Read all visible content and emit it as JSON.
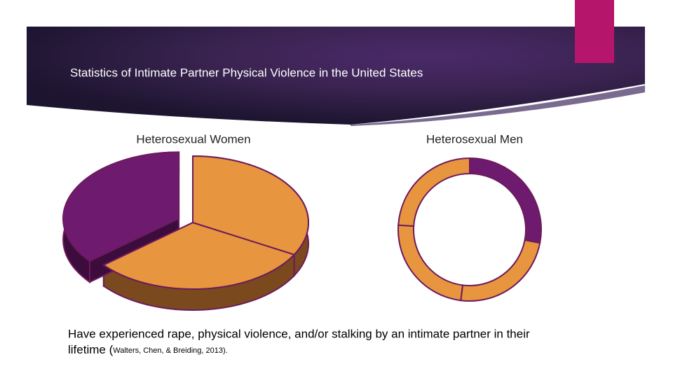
{
  "slide": {
    "title": "Statistics of  Intimate Partner Physical Violence in the United States",
    "caption": "Have experienced rape, physical violence, and/or stalking by an intimate partner in their",
    "caption_line2": "lifetime (",
    "citation": "Walters, Chen, & Breiding, 2013)."
  },
  "chart_data": [
    {
      "type": "pie",
      "title": "Heterosexual Women",
      "values": [
        33,
        31,
        36
      ],
      "colors": [
        "#e8953f",
        "#e8953f",
        "#6e1a6e"
      ],
      "side_colors": [
        "#7a4a1e",
        "#7a4a1e",
        "#3c0c3c"
      ],
      "exploded": [
        false,
        false,
        true
      ]
    },
    {
      "type": "donut",
      "title": "Heterosexual Men",
      "values": [
        28,
        24,
        24,
        24
      ],
      "colors": [
        "#6e1a6e",
        "#e8953f",
        "#e8953f",
        "#e8953f"
      ]
    }
  ]
}
